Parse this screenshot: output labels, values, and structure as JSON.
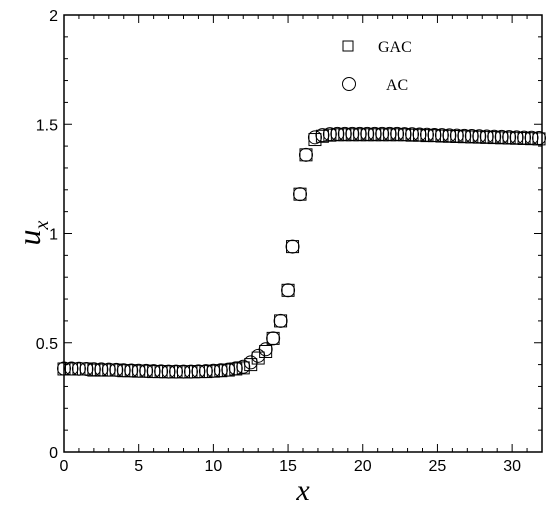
{
  "chart_data": {
    "type": "scatter",
    "xlabel": "x",
    "ylabel": "u",
    "ylabel_subscript": "x",
    "xlim": [
      0,
      32
    ],
    "ylim": [
      0,
      2
    ],
    "xticks": [
      0,
      5,
      10,
      15,
      20,
      25,
      30
    ],
    "yticks": [
      0,
      0.5,
      1,
      1.5,
      2
    ],
    "xtick_labels": [
      "0",
      "5",
      "10",
      "15",
      "20",
      "25",
      "30"
    ],
    "ytick_labels": [
      "0",
      "0.5",
      "1",
      "1.5",
      "2"
    ],
    "grid": false,
    "legend": "top-right",
    "series": [
      {
        "name": "GAC",
        "marker": "square",
        "x": [
          0,
          0.5,
          1,
          1.5,
          2,
          2.5,
          3,
          3.5,
          4,
          4.5,
          5,
          5.5,
          6,
          6.5,
          7,
          7.5,
          8,
          8.5,
          9,
          9.5,
          10,
          10.5,
          11,
          11.5,
          12,
          12.5,
          13,
          13.5,
          14,
          14.5,
          15,
          15.3,
          15.8,
          16.2,
          16.8,
          17.3,
          17.8,
          18.3,
          18.8,
          19.3,
          19.8,
          20.3,
          20.8,
          21.3,
          21.8,
          22.3,
          22.8,
          23.3,
          23.8,
          24.3,
          24.8,
          25.3,
          25.8,
          26.3,
          26.8,
          27.3,
          27.8,
          28.3,
          28.8,
          29.3,
          29.8,
          30.3,
          30.8,
          31.3,
          31.8
        ],
        "y": [
          0.38,
          0.38,
          0.38,
          0.38,
          0.375,
          0.375,
          0.375,
          0.375,
          0.372,
          0.372,
          0.37,
          0.37,
          0.368,
          0.368,
          0.367,
          0.367,
          0.367,
          0.367,
          0.368,
          0.368,
          0.37,
          0.372,
          0.375,
          0.38,
          0.385,
          0.4,
          0.43,
          0.46,
          0.52,
          0.6,
          0.74,
          0.94,
          1.18,
          1.36,
          1.43,
          1.445,
          1.45,
          1.452,
          1.452,
          1.452,
          1.452,
          1.452,
          1.452,
          1.452,
          1.452,
          1.452,
          1.452,
          1.45,
          1.45,
          1.448,
          1.448,
          1.446,
          1.445,
          1.444,
          1.443,
          1.442,
          1.441,
          1.44,
          1.439,
          1.438,
          1.437,
          1.436,
          1.435,
          1.434,
          1.433
        ]
      },
      {
        "name": "AC",
        "marker": "circle",
        "x": [
          0,
          0.5,
          1,
          1.5,
          2,
          2.5,
          3,
          3.5,
          4,
          4.5,
          5,
          5.5,
          6,
          6.5,
          7,
          7.5,
          8,
          8.5,
          9,
          9.5,
          10,
          10.5,
          11,
          11.5,
          12,
          12.5,
          13,
          13.5,
          14,
          14.5,
          15,
          15.3,
          15.8,
          16.2,
          16.8,
          17.3,
          17.8,
          18.3,
          18.8,
          19.3,
          19.8,
          20.3,
          20.8,
          21.3,
          21.8,
          22.3,
          22.8,
          23.3,
          23.8,
          24.3,
          24.8,
          25.3,
          25.8,
          26.3,
          26.8,
          27.3,
          27.8,
          28.3,
          28.8,
          29.3,
          29.8,
          30.3,
          30.8,
          31.3,
          31.8
        ],
        "y": [
          0.382,
          0.382,
          0.381,
          0.38,
          0.379,
          0.378,
          0.377,
          0.376,
          0.374,
          0.373,
          0.372,
          0.371,
          0.37,
          0.369,
          0.368,
          0.368,
          0.368,
          0.368,
          0.369,
          0.37,
          0.372,
          0.374,
          0.377,
          0.383,
          0.39,
          0.41,
          0.44,
          0.47,
          0.52,
          0.6,
          0.74,
          0.94,
          1.18,
          1.36,
          1.44,
          1.45,
          1.455,
          1.456,
          1.456,
          1.456,
          1.456,
          1.456,
          1.456,
          1.456,
          1.456,
          1.456,
          1.455,
          1.454,
          1.453,
          1.452,
          1.451,
          1.45,
          1.449,
          1.448,
          1.447,
          1.446,
          1.445,
          1.444,
          1.443,
          1.442,
          1.441,
          1.44,
          1.439,
          1.438,
          1.437
        ]
      }
    ]
  }
}
